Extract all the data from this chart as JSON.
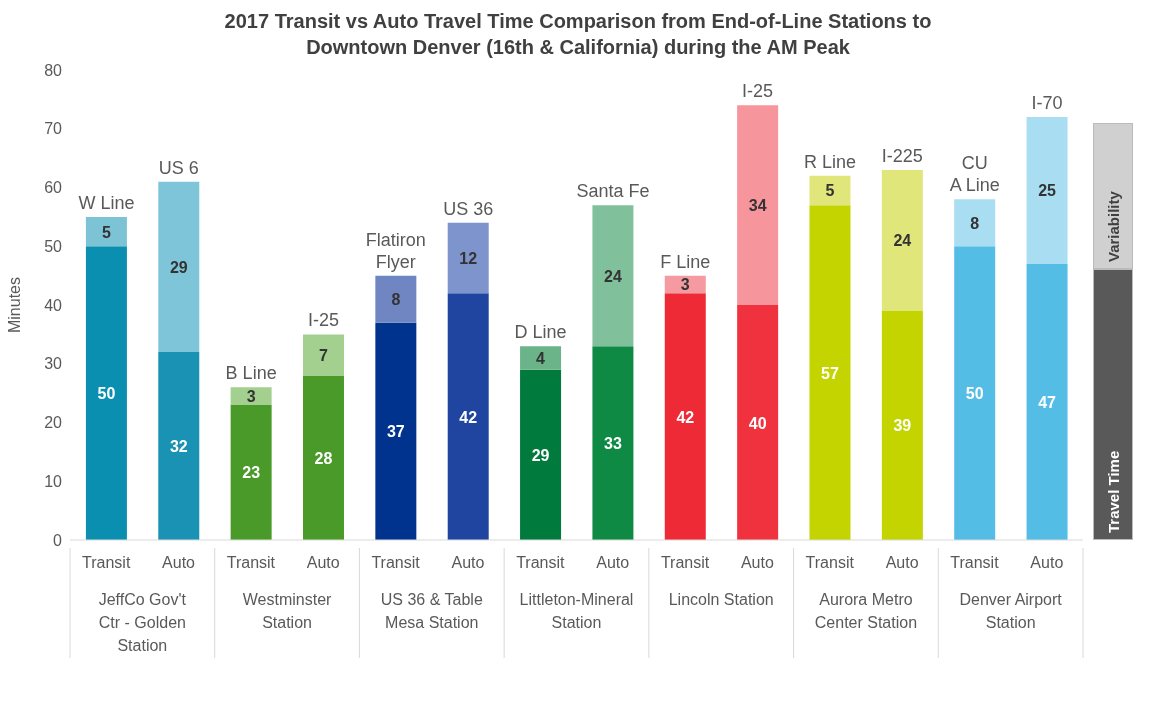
{
  "chart_data": {
    "type": "bar",
    "stacked": true,
    "title": "2017 Transit vs Auto Travel Time Comparison from End-of-Line Stations to Downtown Denver (16th & California) during the AM Peak",
    "ylabel": "Minutes",
    "categories": [
      "Transit",
      "Auto",
      "Transit",
      "Auto",
      "Transit",
      "Auto",
      "Transit",
      "Auto",
      "Transit",
      "Auto",
      "Transit",
      "Auto",
      "Transit",
      "Auto"
    ],
    "series": [
      {
        "name": "Travel Time",
        "color": "#595959",
        "colors": [
          "#0b8fb0",
          "#1a92b3",
          "#4a9a2a",
          "#4a9a2a",
          "#00338d",
          "#1f45a0",
          "#007a3d",
          "#0e8a45",
          "#ee2a37",
          "#f0323f",
          "#c3d400",
          "#c3d400",
          "#54bde6",
          "#54bde6"
        ],
        "values": [
          50,
          32,
          23,
          28,
          37,
          42,
          29,
          33,
          42,
          40,
          57,
          39,
          50,
          47
        ]
      },
      {
        "name": "Variability",
        "color": "#d0d0d0",
        "colors": [
          "#7cc4d5",
          "#7fc5d9",
          "#a3d08f",
          "#a3d08f",
          "#6f86c2",
          "#7d95cc",
          "#6bb48a",
          "#80c09b",
          "#f59aa0",
          "#f7959c",
          "#e0e67a",
          "#e0e67a",
          "#a9def2",
          "#a9def2"
        ],
        "values": [
          5,
          29,
          3,
          7,
          8,
          12,
          4,
          24,
          3,
          34,
          5,
          24,
          8,
          25
        ]
      }
    ],
    "annotations": [
      "W Line",
      "US 6",
      "B Line",
      "I-25",
      "Flatiron Flyer",
      "US 36",
      "D Line",
      "Santa Fe",
      "F Line",
      "I-25",
      "R Line",
      "I-225",
      "CU A Line",
      "I-70",
      "JeffCo Gov't Ctr - Golden Station",
      "Westminster Station",
      "US 36 & Table Mesa Station",
      "Littleton-Mineral Station",
      "Lincoln Station",
      "Aurora Metro Center Station",
      "Denver Airport Station"
    ],
    "ylim": [
      0,
      80
    ],
    "yticks": [
      0,
      10,
      20,
      30,
      40,
      50,
      60,
      70,
      80
    ],
    "grid": false,
    "data_labels": true,
    "legend": "right"
  }
}
